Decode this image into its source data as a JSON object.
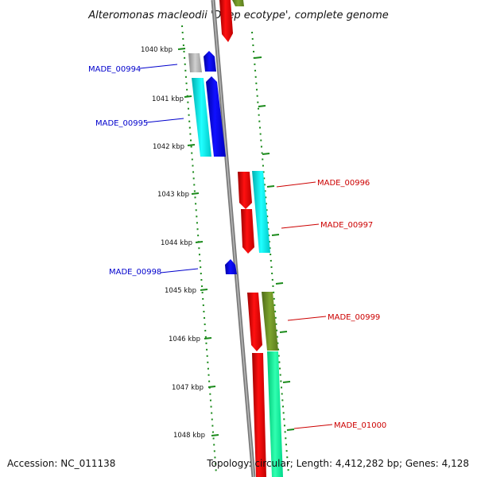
{
  "title": "Alteromonas macleodii 'Deep ecotype', complete genome",
  "footer": {
    "accession": "Accession: NC_011138",
    "summary": "Topology: circular; Length: 4,412,282 bp; Genes: 4,128"
  },
  "ticks": [
    "1040 kbp",
    "1041 kbp",
    "1042 kbp",
    "1043 kbp",
    "1044 kbp",
    "1045 kbp",
    "1046 kbp",
    "1047 kbp",
    "1048 kbp"
  ],
  "genes": [
    {
      "id": "MADE_00994",
      "strand": "reverse"
    },
    {
      "id": "MADE_00995",
      "strand": "reverse"
    },
    {
      "id": "MADE_00996",
      "strand": "forward"
    },
    {
      "id": "MADE_00997",
      "strand": "forward"
    },
    {
      "id": "MADE_00998",
      "strand": "reverse"
    },
    {
      "id": "MADE_00999",
      "strand": "forward"
    },
    {
      "id": "MADE_01000",
      "strand": "forward"
    }
  ],
  "colors": {
    "forward_label": "#cc0000",
    "reverse_label": "#0000cc",
    "forward_cds": "#ff0000",
    "reverse_cds": "#0000ff",
    "cyan_feature": "#00ffff",
    "olive_feature": "#6b8e23",
    "spring_feature": "#00ff99",
    "grey_feature": "#b0b0b0",
    "backbone": "#808080",
    "tick_dots": "#1a8a1a"
  }
}
